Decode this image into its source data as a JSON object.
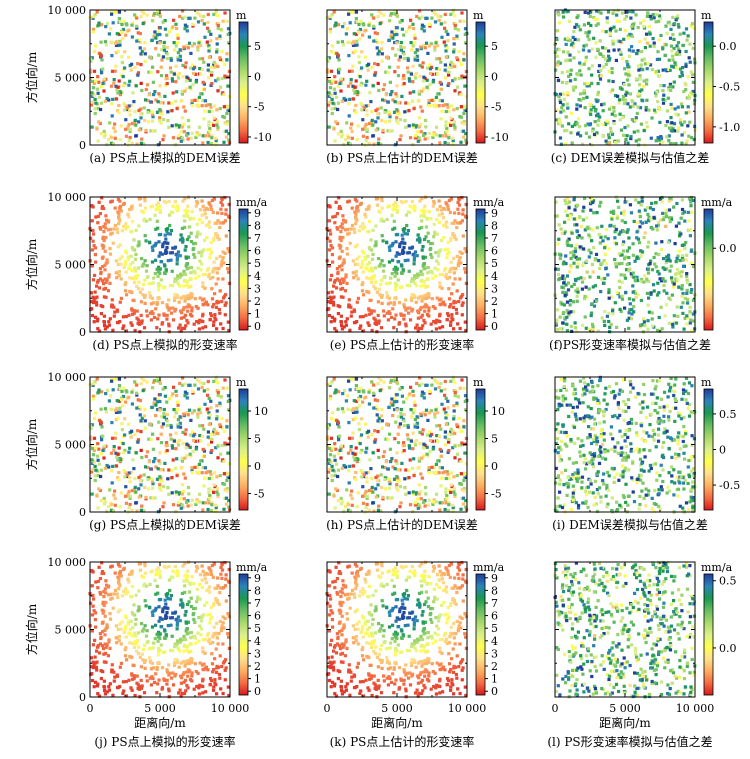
{
  "figure": {
    "x_axis_label": "距离向/m",
    "y_axis_label": "方位向/m",
    "x_ticks": [
      "0",
      "5 000",
      "10 000"
    ],
    "y_ticks": [
      "0",
      "5 000",
      "10 000"
    ]
  },
  "colormap": [
    "#d7191c",
    "#f46d43",
    "#fdae61",
    "#fee08b",
    "#ffff4d",
    "#d9ef8b",
    "#a6d96a",
    "#66bd63",
    "#1a9850",
    "#2b83ba",
    "#1f3d99"
  ],
  "chart_data": [
    {
      "id": "a",
      "type": "scatter",
      "caption": "(a) PS点上模拟的DEM误差",
      "pattern": "random",
      "unit": "m",
      "range": [
        -11,
        9
      ],
      "ticks": [
        {
          "v": 5,
          "t": "5"
        },
        {
          "v": 0,
          "t": "0"
        },
        {
          "v": -5,
          "t": "-5"
        },
        {
          "v": -10,
          "t": "-10"
        }
      ],
      "xlim": [
        0,
        10000
      ],
      "ylim": [
        0,
        10000
      ],
      "row": 0,
      "col": 0,
      "show_y": true,
      "show_x": false
    },
    {
      "id": "b",
      "type": "scatter",
      "caption": "(b) PS点上估计的DEM误差",
      "pattern": "random",
      "unit": "m",
      "range": [
        -11,
        9
      ],
      "ticks": [
        {
          "v": 5,
          "t": "5"
        },
        {
          "v": 0,
          "t": "0"
        },
        {
          "v": -5,
          "t": "-5"
        },
        {
          "v": -10,
          "t": "-10"
        }
      ],
      "xlim": [
        0,
        10000
      ],
      "ylim": [
        0,
        10000
      ],
      "row": 0,
      "col": 1,
      "show_y": false,
      "show_x": false
    },
    {
      "id": "c",
      "type": "scatter",
      "caption": "(c) DEM误差模拟与估值之差",
      "pattern": "residual",
      "unit": "m",
      "range": [
        -1.2,
        0.3
      ],
      "ticks": [
        {
          "v": 0,
          "t": "0.0"
        },
        {
          "v": -0.5,
          "t": "-0.5"
        },
        {
          "v": -1,
          "t": "-1.0"
        }
      ],
      "xlim": [
        0,
        10000
      ],
      "ylim": [
        0,
        10000
      ],
      "row": 0,
      "col": 2,
      "show_y": false,
      "show_x": false
    },
    {
      "id": "d",
      "type": "scatter",
      "caption": "(d) PS点上模拟的形变速率",
      "pattern": "radial",
      "unit": "mm/a",
      "range": [
        -0.3,
        9.3
      ],
      "ticks": [
        {
          "v": 9,
          "t": "9"
        },
        {
          "v": 8,
          "t": "8"
        },
        {
          "v": 7,
          "t": "7"
        },
        {
          "v": 6,
          "t": "6"
        },
        {
          "v": 5,
          "t": "5"
        },
        {
          "v": 4,
          "t": "4"
        },
        {
          "v": 3,
          "t": "3"
        },
        {
          "v": 2,
          "t": "2"
        },
        {
          "v": 1,
          "t": "1"
        },
        {
          "v": 0,
          "t": "0"
        }
      ],
      "xlim": [
        0,
        10000
      ],
      "ylim": [
        0,
        10000
      ],
      "row": 1,
      "col": 0,
      "show_y": true,
      "show_x": false
    },
    {
      "id": "e",
      "type": "scatter",
      "caption": "(e) PS点上估计的形变速率",
      "pattern": "radial",
      "unit": "mm/a",
      "range": [
        -0.3,
        9.3
      ],
      "ticks": [
        {
          "v": 9,
          "t": "9"
        },
        {
          "v": 8,
          "t": "8"
        },
        {
          "v": 7,
          "t": "7"
        },
        {
          "v": 6,
          "t": "6"
        },
        {
          "v": 5,
          "t": "5"
        },
        {
          "v": 4,
          "t": "4"
        },
        {
          "v": 3,
          "t": "3"
        },
        {
          "v": 2,
          "t": "2"
        },
        {
          "v": 1,
          "t": "1"
        },
        {
          "v": 0,
          "t": "0"
        }
      ],
      "xlim": [
        0,
        10000
      ],
      "ylim": [
        0,
        10000
      ],
      "row": 1,
      "col": 1,
      "show_y": false,
      "show_x": false
    },
    {
      "id": "f",
      "type": "scatter",
      "caption": "(f)PS形变速率模拟与估值之差",
      "pattern": "residual",
      "unit": "mm/a",
      "range": [
        -0.25,
        0.12
      ],
      "ticks": [
        {
          "v": 0,
          "t": "0.0"
        }
      ],
      "xlim": [
        0,
        10000
      ],
      "ylim": [
        0,
        10000
      ],
      "row": 1,
      "col": 2,
      "show_y": false,
      "show_x": false
    },
    {
      "id": "g",
      "type": "scatter",
      "caption": "(g) PS点上模拟的DEM误差",
      "pattern": "random",
      "unit": "m",
      "range": [
        -8,
        14
      ],
      "ticks": [
        {
          "v": 10,
          "t": "10"
        },
        {
          "v": 5,
          "t": "5"
        },
        {
          "v": 0,
          "t": "0"
        },
        {
          "v": -5,
          "t": "-5"
        }
      ],
      "xlim": [
        0,
        10000
      ],
      "ylim": [
        0,
        10000
      ],
      "row": 2,
      "col": 0,
      "show_y": true,
      "show_x": false
    },
    {
      "id": "h",
      "type": "scatter",
      "caption": "(h) PS点上估计的DEM误差",
      "pattern": "random",
      "unit": "m",
      "range": [
        -8,
        14
      ],
      "ticks": [
        {
          "v": 10,
          "t": "10"
        },
        {
          "v": 5,
          "t": "5"
        },
        {
          "v": 0,
          "t": "0"
        },
        {
          "v": -5,
          "t": "-5"
        }
      ],
      "xlim": [
        0,
        10000
      ],
      "ylim": [
        0,
        10000
      ],
      "row": 2,
      "col": 1,
      "show_y": false,
      "show_x": false
    },
    {
      "id": "i",
      "type": "scatter",
      "caption": "(i) DEM误差模拟与估值之差",
      "pattern": "residual",
      "unit": "m",
      "range": [
        -0.85,
        0.85
      ],
      "ticks": [
        {
          "v": 0.5,
          "t": "0.5"
        },
        {
          "v": 0,
          "t": "0"
        },
        {
          "v": -0.5,
          "t": "-0.5"
        }
      ],
      "xlim": [
        0,
        10000
      ],
      "ylim": [
        0,
        10000
      ],
      "row": 2,
      "col": 2,
      "show_y": false,
      "show_x": false
    },
    {
      "id": "j",
      "type": "scatter",
      "caption": "(j) PS点上模拟的形变速率",
      "pattern": "radial",
      "unit": "mm/a",
      "range": [
        -0.3,
        9.3
      ],
      "ticks": [
        {
          "v": 9,
          "t": "9"
        },
        {
          "v": 8,
          "t": "8"
        },
        {
          "v": 7,
          "t": "7"
        },
        {
          "v": 6,
          "t": "6"
        },
        {
          "v": 5,
          "t": "5"
        },
        {
          "v": 4,
          "t": "4"
        },
        {
          "v": 3,
          "t": "3"
        },
        {
          "v": 2,
          "t": "2"
        },
        {
          "v": 1,
          "t": "1"
        },
        {
          "v": 0,
          "t": "0"
        }
      ],
      "xlim": [
        0,
        10000
      ],
      "ylim": [
        0,
        10000
      ],
      "row": 3,
      "col": 0,
      "show_y": true,
      "show_x": true
    },
    {
      "id": "k",
      "type": "scatter",
      "caption": "(k) PS点上估计的形变速率",
      "pattern": "radial",
      "unit": "mm/a",
      "range": [
        -0.3,
        9.3
      ],
      "ticks": [
        {
          "v": 9,
          "t": "9"
        },
        {
          "v": 8,
          "t": "8"
        },
        {
          "v": 7,
          "t": "7"
        },
        {
          "v": 6,
          "t": "6"
        },
        {
          "v": 5,
          "t": "5"
        },
        {
          "v": 4,
          "t": "4"
        },
        {
          "v": 3,
          "t": "3"
        },
        {
          "v": 2,
          "t": "2"
        },
        {
          "v": 1,
          "t": "1"
        },
        {
          "v": 0,
          "t": "0"
        }
      ],
      "xlim": [
        0,
        10000
      ],
      "ylim": [
        0,
        10000
      ],
      "row": 3,
      "col": 1,
      "show_y": false,
      "show_x": true
    },
    {
      "id": "l",
      "type": "scatter",
      "caption": "(l) PS形变速率模拟与估值之差",
      "pattern": "residual",
      "unit": "mm/a",
      "range": [
        -0.35,
        0.55
      ],
      "ticks": [
        {
          "v": 0.5,
          "t": "0.5"
        },
        {
          "v": 0,
          "t": "0.0"
        }
      ],
      "xlim": [
        0,
        10000
      ],
      "ylim": [
        0,
        10000
      ],
      "row": 3,
      "col": 2,
      "show_y": false,
      "show_x": true
    }
  ]
}
